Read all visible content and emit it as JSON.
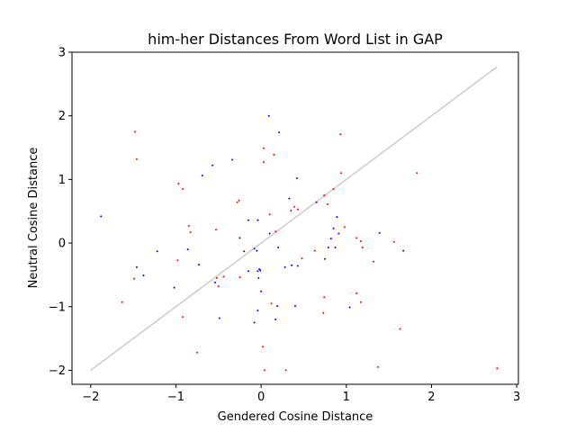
{
  "chart_data": {
    "type": "scatter",
    "title": "him-her Distances From Word List in GAP",
    "xlabel": "Gendered Cosine Distance",
    "ylabel": "Neutral Cosine Distance",
    "xlim": [
      -2.22,
      3.02
    ],
    "ylim": [
      -2.22,
      3.0
    ],
    "xticks": [
      -2,
      -1,
      0,
      1,
      2,
      3
    ],
    "xtick_labels": [
      "−2",
      "−1",
      "0",
      "1",
      "2",
      "3"
    ],
    "yticks": [
      -2,
      -1,
      0,
      1,
      2,
      3
    ],
    "ytick_labels": [
      "−2",
      "−1",
      "0",
      "1",
      "2",
      "3"
    ],
    "grid": false,
    "reference_line": {
      "x": [
        -2,
        2.77
      ],
      "y": [
        -2,
        2.77
      ],
      "color": "#cccccc"
    },
    "series": [
      {
        "color": "#ff0000",
        "points": [
          [
            -1.48,
            1.75
          ],
          [
            -1.46,
            1.32
          ],
          [
            -0.97,
            0.93
          ],
          [
            -0.92,
            0.85
          ],
          [
            -0.85,
            0.27
          ],
          [
            -0.83,
            0.17
          ],
          [
            -0.98,
            -0.27
          ],
          [
            -0.92,
            -1.16
          ],
          [
            -0.75,
            -1.72
          ],
          [
            -1.63,
            -0.93
          ],
          [
            -1.49,
            -0.56
          ],
          [
            -0.53,
            0.21
          ],
          [
            -0.52,
            -0.55
          ],
          [
            -0.5,
            -0.68
          ],
          [
            -0.44,
            -0.53
          ],
          [
            -0.28,
            0.64
          ],
          [
            -0.26,
            0.67
          ],
          [
            -0.25,
            -0.54
          ],
          [
            0.03,
            1.49
          ],
          [
            0.03,
            1.27
          ],
          [
            0.15,
            1.39
          ],
          [
            0.1,
            0.45
          ],
          [
            0.17,
            0.18
          ],
          [
            0.12,
            -0.95
          ],
          [
            0.02,
            -1.63
          ],
          [
            0.04,
            -2.0
          ],
          [
            0.29,
            -2.0
          ],
          [
            0.35,
            0.51
          ],
          [
            0.39,
            0.57
          ],
          [
            0.43,
            0.53
          ],
          [
            0.48,
            -0.24
          ],
          [
            0.63,
            -0.12
          ],
          [
            0.74,
            0.75
          ],
          [
            0.78,
            0.61
          ],
          [
            0.85,
            0.85
          ],
          [
            0.93,
            1.71
          ],
          [
            0.94,
            1.1
          ],
          [
            0.98,
            0.25
          ],
          [
            0.74,
            -0.85
          ],
          [
            0.73,
            -1.1
          ],
          [
            1.12,
            0.08
          ],
          [
            1.17,
            0.03
          ],
          [
            1.19,
            -0.07
          ],
          [
            1.12,
            -0.79
          ],
          [
            1.17,
            -0.93
          ],
          [
            1.32,
            -0.29
          ],
          [
            1.37,
            -1.95
          ],
          [
            1.56,
            0.02
          ],
          [
            1.63,
            -1.35
          ],
          [
            1.83,
            1.1
          ],
          [
            2.77,
            -1.97
          ]
        ]
      },
      {
        "color": "#0000ff",
        "points": [
          [
            -1.88,
            0.42
          ],
          [
            -1.46,
            -0.38
          ],
          [
            -1.38,
            -0.51
          ],
          [
            -1.22,
            -0.13
          ],
          [
            -1.02,
            -0.7
          ],
          [
            -0.86,
            -0.1
          ],
          [
            -0.73,
            -0.34
          ],
          [
            -0.69,
            1.06
          ],
          [
            -0.57,
            1.22
          ],
          [
            -0.54,
            -0.62
          ],
          [
            -0.49,
            -1.18
          ],
          [
            -0.34,
            1.31
          ],
          [
            -0.25,
            0.08
          ],
          [
            -0.2,
            -0.13
          ],
          [
            -0.15,
            0.36
          ],
          [
            -0.15,
            -0.44
          ],
          [
            -0.08,
            -0.09
          ],
          [
            -0.04,
            0.36
          ],
          [
            -0.05,
            -0.12
          ],
          [
            -0.04,
            -0.44
          ],
          [
            -0.02,
            -0.41
          ],
          [
            -0.01,
            -0.43
          ],
          [
            -0.03,
            -0.55
          ],
          [
            0.0,
            -0.76
          ],
          [
            -0.04,
            -1.06
          ],
          [
            -0.08,
            -1.25
          ],
          [
            0.09,
            2.0
          ],
          [
            0.21,
            1.74
          ],
          [
            0.2,
            -0.07
          ],
          [
            0.19,
            -0.99
          ],
          [
            0.17,
            -1.2
          ],
          [
            0.28,
            -0.38
          ],
          [
            0.33,
            0.7
          ],
          [
            0.36,
            -0.35
          ],
          [
            0.4,
            -0.99
          ],
          [
            0.42,
            1.02
          ],
          [
            0.43,
            -0.36
          ],
          [
            0.65,
            0.64
          ],
          [
            0.75,
            -0.25
          ],
          [
            0.79,
            -0.07
          ],
          [
            0.82,
            0.07
          ],
          [
            0.85,
            0.23
          ],
          [
            0.87,
            -0.07
          ],
          [
            0.89,
            0.41
          ],
          [
            0.91,
            0.15
          ],
          [
            1.04,
            -1.01
          ],
          [
            1.39,
            0.16
          ],
          [
            1.67,
            -0.12
          ],
          [
            0.1,
            0.15
          ]
        ]
      }
    ]
  }
}
